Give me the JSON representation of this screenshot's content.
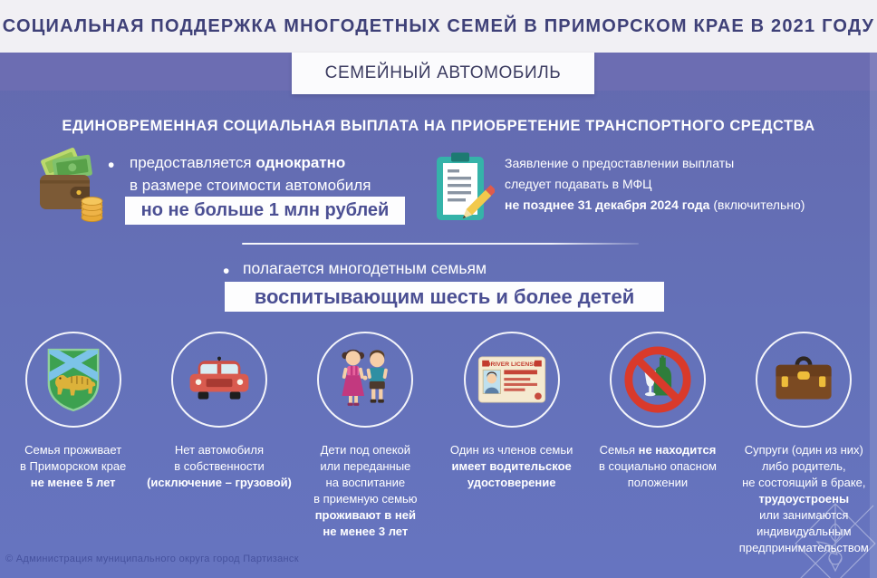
{
  "colors": {
    "header_bg": "#f1f0f4",
    "header_text": "#3f4178",
    "band_bg": "#6c6db2",
    "main_bg": "#6471b8",
    "highlight_box_bg": "#fdfdfe",
    "highlight_box_text": "#4b4f93",
    "body_text": "#ffffff"
  },
  "ui": {
    "bullet": "•"
  },
  "header": {
    "title": "СОЦИАЛЬНАЯ ПОДДЕРЖКА МНОГОДЕТНЫХ СЕМЕЙ В ПРИМОРСКОМ КРАЕ В 2021 ГОДУ",
    "badge": "СЕМЕЙНЫЙ АВТОМОБИЛЬ"
  },
  "payment": {
    "section_title": "ЕДИНОВРЕМЕННАЯ СОЦИАЛЬНАЯ ВЫПЛАТА НА ПРИОБРЕТЕНИЕ ТРАНСПОРТНОГО СРЕДСТВА",
    "grant": {
      "icon": "wallet-money-icon",
      "line1_normal": "предоставляется",
      "line1_bold": "однократно",
      "line2": "в размере стоимости автомобиля",
      "highlight": "но не больше 1 млн рублей"
    },
    "application": {
      "icon": "application-clipboard-icon",
      "line1": "Заявление о предоставлении выплаты",
      "line2": "следует подавать в МФЦ",
      "line3_bold": "не позднее 31 декабря 2024 года",
      "line3_normal": "(включительно)"
    }
  },
  "eligibility": {
    "bullet_text": "полагается многодетным семьям",
    "highlight": "воспитывающим шесть и более детей"
  },
  "license_card": {
    "title": "DRIVER LICENSE"
  },
  "conditions": [
    {
      "icon": "primorsky-krai-crest-icon",
      "lines": [
        [
          {
            "t": "Семья проживает",
            "b": false
          }
        ],
        [
          {
            "t": "в Приморском крае",
            "b": false
          }
        ],
        [
          {
            "t": "не менее 5 лет",
            "b": true
          }
        ]
      ]
    },
    {
      "icon": "car-icon",
      "lines": [
        [
          {
            "t": "Нет автомобиля",
            "b": false
          }
        ],
        [
          {
            "t": "в собственности",
            "b": false
          }
        ],
        [
          {
            "t": "(исключение – грузовой)",
            "b": true
          }
        ]
      ]
    },
    {
      "icon": "children-icon",
      "lines": [
        [
          {
            "t": "Дети под опекой",
            "b": false
          }
        ],
        [
          {
            "t": "или переданные",
            "b": false
          }
        ],
        [
          {
            "t": "на воспитание",
            "b": false
          }
        ],
        [
          {
            "t": "в приемную семью",
            "b": false
          }
        ],
        [
          {
            "t": "проживают в ней",
            "b": true
          }
        ],
        [
          {
            "t": "не менее 3 лет",
            "b": true
          }
        ]
      ]
    },
    {
      "icon": "driver-license-icon",
      "lines": [
        [
          {
            "t": "Один из членов семьи",
            "b": false
          }
        ],
        [
          {
            "t": "имеет водительское",
            "b": true
          }
        ],
        [
          {
            "t": "удостоверение",
            "b": true
          }
        ]
      ]
    },
    {
      "icon": "no-alcohol-icon",
      "lines": [
        [
          {
            "t": "Семья ",
            "b": false
          },
          {
            "t": "не находится",
            "b": true
          }
        ],
        [
          {
            "t": "в социально опасном",
            "b": false
          }
        ],
        [
          {
            "t": "положении",
            "b": false
          }
        ]
      ]
    },
    {
      "icon": "briefcase-icon",
      "lines": [
        [
          {
            "t": "Супруги (один из них)",
            "b": false
          }
        ],
        [
          {
            "t": "либо родитель,",
            "b": false
          }
        ],
        [
          {
            "t": "не состоящий в браке,",
            "b": false
          }
        ],
        [
          {
            "t": "трудоустроены",
            "b": true
          }
        ],
        [
          {
            "t": "или занимаются",
            "b": false
          }
        ],
        [
          {
            "t": "индивидуальным",
            "b": false
          }
        ],
        [
          {
            "t": "предпринимательством",
            "b": false
          }
        ]
      ]
    }
  ],
  "footer": {
    "copyright": "© Администрация муниципального округа город Партизанск",
    "watermark_icon": "compass-rose-logo-icon"
  }
}
